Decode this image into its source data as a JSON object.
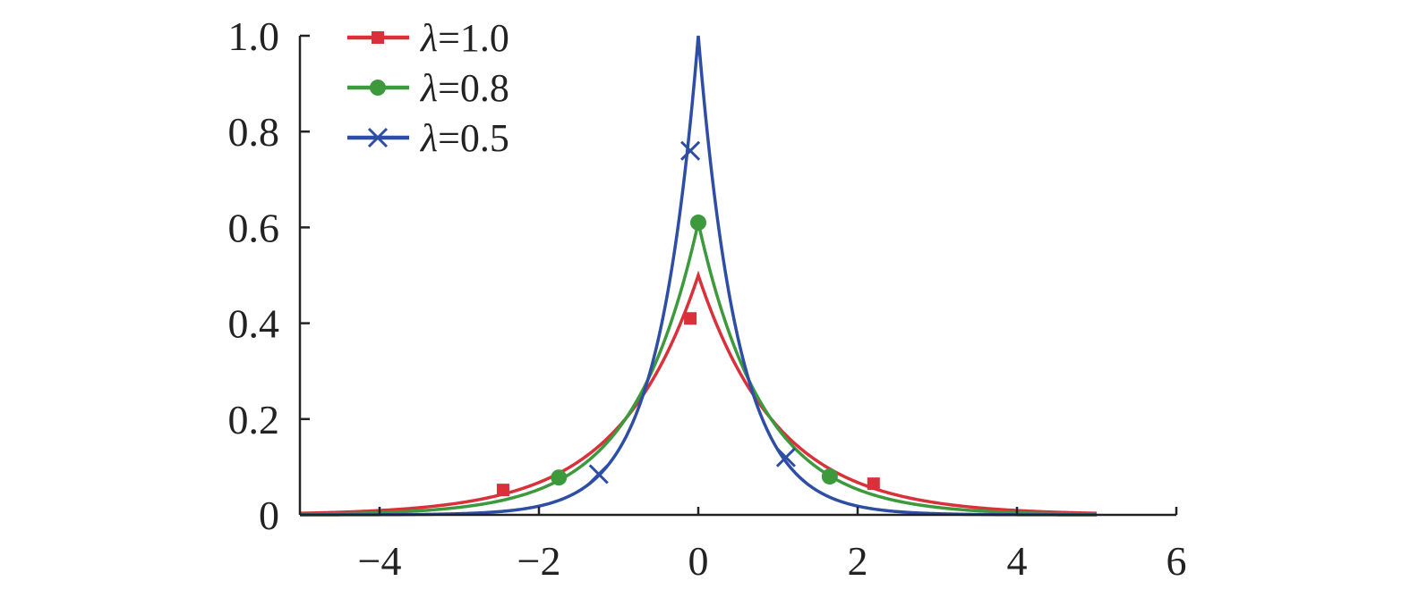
{
  "chart_data": {
    "type": "line",
    "title": "",
    "xlabel": "",
    "ylabel": "",
    "xlim": [
      -5,
      6
    ],
    "ylim": [
      0,
      1.0
    ],
    "x_ticks": [
      -4,
      -2,
      0,
      2,
      4,
      6
    ],
    "x_tick_labels": [
      "−4",
      "−2",
      "0",
      "2",
      "4",
      "6"
    ],
    "y_ticks": [
      0,
      0.2,
      0.4,
      0.6,
      0.8,
      1.0
    ],
    "y_tick_labels": [
      "0",
      "0.2",
      "0.4",
      "0.6",
      "0.8",
      "1.0"
    ],
    "grid": false,
    "legend_position": "top-left",
    "x_range_plotted": [
      -5,
      5
    ],
    "series": [
      {
        "name": "λ=1.0",
        "legend_symbol": "λ",
        "legend_value": "=1.0",
        "color": "#d9303a",
        "marker": "square",
        "peak": 0.5,
        "markers": [
          [
            -2.45,
            0.052
          ],
          [
            -0.1,
            0.41
          ],
          [
            2.2,
            0.065
          ]
        ]
      },
      {
        "name": "λ=0.8",
        "legend_symbol": "λ",
        "legend_value": "=0.8",
        "color": "#3c9a3c",
        "marker": "circle",
        "peak": 0.61,
        "markers": [
          [
            -1.75,
            0.078
          ],
          [
            0.0,
            0.61
          ],
          [
            1.65,
            0.08
          ]
        ]
      },
      {
        "name": "λ=0.5",
        "legend_symbol": "λ",
        "legend_value": "=0.5",
        "color": "#2e4ea6",
        "marker": "cross",
        "peak": 1.0,
        "markers": [
          [
            -1.25,
            0.085
          ],
          [
            -0.1,
            0.76
          ],
          [
            1.1,
            0.12
          ]
        ]
      }
    ]
  }
}
